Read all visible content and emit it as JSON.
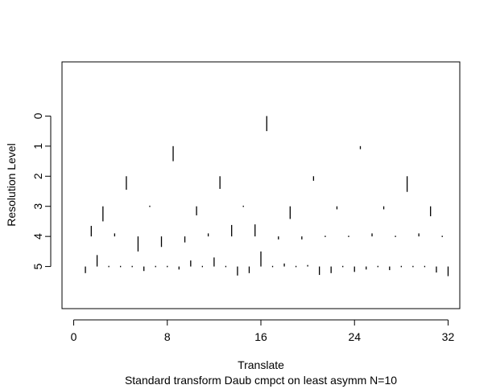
{
  "chart_data": {
    "type": "wavelet coefficient plot",
    "xlabel": "Translate",
    "ylabel": "Resolution Level",
    "subtitle": "Standard transform Daub cmpct on least asymm N=10",
    "xlim": [
      -1,
      33
    ],
    "ylim": [
      6.4,
      -1.8
    ],
    "x_ticks": [
      0,
      8,
      16,
      24,
      32
    ],
    "x_tick_labels": [
      "0",
      "8",
      "16",
      "24",
      "32"
    ],
    "y_ticks": [
      0,
      1,
      2,
      3,
      4,
      5
    ],
    "y_tick_labels": [
      "0",
      "1",
      "2",
      "3",
      "4",
      "5"
    ],
    "levels": [
      {
        "level": 0,
        "coefficients": [
          {
            "x": 16.5,
            "dy": 0.5
          }
        ]
      },
      {
        "level": 1,
        "coefficients": [
          {
            "x": 8.5,
            "dy": 0.5
          },
          {
            "x": 24.5,
            "dy": 0.1
          }
        ]
      },
      {
        "level": 2,
        "coefficients": [
          {
            "x": 4.5,
            "dy": 0.45
          },
          {
            "x": 12.5,
            "dy": 0.42
          },
          {
            "x": 20.5,
            "dy": 0.15
          },
          {
            "x": 28.5,
            "dy": 0.52
          }
        ]
      },
      {
        "level": 3,
        "coefficients": [
          {
            "x": 2.5,
            "dy": 0.5
          },
          {
            "x": 6.5,
            "dy": 0.0
          },
          {
            "x": 10.5,
            "dy": 0.3
          },
          {
            "x": 14.5,
            "dy": 0.0
          },
          {
            "x": 18.5,
            "dy": 0.42
          },
          {
            "x": 22.5,
            "dy": 0.1
          },
          {
            "x": 26.5,
            "dy": 0.1
          },
          {
            "x": 30.5,
            "dy": 0.33
          }
        ]
      },
      {
        "level": 4,
        "coefficients": [
          {
            "x": 1.5,
            "dy": -0.35
          },
          {
            "x": 3.5,
            "dy": -0.1
          },
          {
            "x": 5.5,
            "dy": 0.5
          },
          {
            "x": 7.5,
            "dy": 0.35
          },
          {
            "x": 9.5,
            "dy": 0.2
          },
          {
            "x": 11.5,
            "dy": -0.1
          },
          {
            "x": 13.5,
            "dy": -0.38
          },
          {
            "x": 15.5,
            "dy": -0.4
          },
          {
            "x": 17.5,
            "dy": 0.1
          },
          {
            "x": 19.5,
            "dy": 0.1
          },
          {
            "x": 21.5,
            "dy": 0.0
          },
          {
            "x": 23.5,
            "dy": 0.0
          },
          {
            "x": 25.5,
            "dy": -0.1
          },
          {
            "x": 27.5,
            "dy": 0.0
          },
          {
            "x": 29.5,
            "dy": -0.1
          },
          {
            "x": 31.5,
            "dy": 0.0
          }
        ]
      },
      {
        "level": 5,
        "coefficients": [
          {
            "x": 1,
            "dy": 0.22
          },
          {
            "x": 2,
            "dy": -0.38
          },
          {
            "x": 3,
            "dy": 0.0
          },
          {
            "x": 4,
            "dy": 0.0
          },
          {
            "x": 5,
            "dy": 0.0
          },
          {
            "x": 6,
            "dy": 0.15
          },
          {
            "x": 7,
            "dy": 0.0
          },
          {
            "x": 8,
            "dy": 0.0
          },
          {
            "x": 9,
            "dy": 0.1
          },
          {
            "x": 10,
            "dy": -0.2
          },
          {
            "x": 11,
            "dy": 0.0
          },
          {
            "x": 12,
            "dy": -0.3
          },
          {
            "x": 13,
            "dy": 0.0
          },
          {
            "x": 14,
            "dy": 0.3
          },
          {
            "x": 15,
            "dy": 0.22
          },
          {
            "x": 16,
            "dy": -0.5
          },
          {
            "x": 17,
            "dy": 0.0
          },
          {
            "x": 18,
            "dy": -0.1
          },
          {
            "x": 19,
            "dy": 0.0
          },
          {
            "x": 20,
            "dy": -0.05
          },
          {
            "x": 21,
            "dy": 0.28
          },
          {
            "x": 22,
            "dy": 0.22
          },
          {
            "x": 23,
            "dy": 0.0
          },
          {
            "x": 24,
            "dy": 0.18
          },
          {
            "x": 25,
            "dy": 0.1
          },
          {
            "x": 26,
            "dy": 0.0
          },
          {
            "x": 27,
            "dy": 0.12
          },
          {
            "x": 28,
            "dy": 0.0
          },
          {
            "x": 29,
            "dy": 0.0
          },
          {
            "x": 30,
            "dy": 0.0
          },
          {
            "x": 31,
            "dy": 0.2
          },
          {
            "x": 32,
            "dy": 0.32
          }
        ]
      }
    ]
  }
}
